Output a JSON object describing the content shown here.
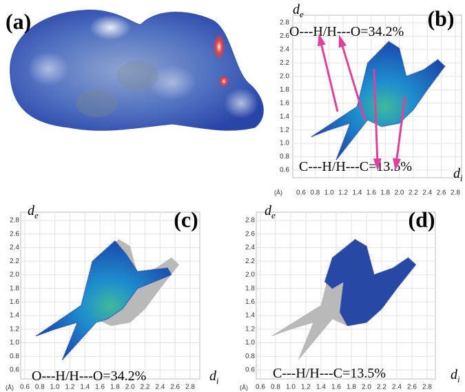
{
  "panels": [
    {
      "label": "(a)"
    },
    {
      "label": "(b)",
      "y_symbol": "d",
      "y_sub": "e",
      "x_symbol": "d",
      "x_sub": "i",
      "unit": "(Å)",
      "xticks": [
        0.6,
        0.8,
        {
          "value": 1,
          "label": "1.0"
        },
        1.2,
        1.4,
        1.6,
        1.8,
        {
          "value": 2,
          "label": "2.0"
        },
        2.2,
        2.4,
        2.6,
        2.8
      ],
      "yticks": [
        0.6,
        0.8,
        {
          "value": 1,
          "label": "1.0"
        },
        1.2,
        1.4,
        1.6,
        1.8,
        {
          "value": 2,
          "label": "2.0"
        },
        2.2,
        2.4,
        2.6,
        2.8
      ],
      "annotations": [
        "O---H/H---O=34.2%",
        "C---H/H---C=13.5%"
      ]
    },
    {
      "label": "(c)",
      "y_symbol": "d",
      "y_sub": "e",
      "x_symbol": "d",
      "x_sub": "i",
      "unit": "(Å)",
      "xticks": [
        0.6,
        0.8,
        {
          "value": 1,
          "label": "1.0"
        },
        1.2,
        1.4,
        1.6,
        1.8,
        {
          "value": 2,
          "label": "2.0"
        },
        2.2,
        2.4,
        2.6,
        2.8
      ],
      "yticks": [
        0.6,
        0.8,
        {
          "value": 1,
          "label": "1.0"
        },
        1.2,
        1.4,
        1.6,
        1.8,
        {
          "value": 2,
          "label": "2.0"
        },
        2.2,
        2.4,
        2.6,
        2.8
      ],
      "annotations": [
        "O---H/H---O=34.2%"
      ]
    },
    {
      "label": "(d)",
      "y_symbol": "d",
      "y_sub": "e",
      "x_symbol": "d",
      "x_sub": "i",
      "unit": "(Å)",
      "xticks": [
        0.6,
        0.8,
        {
          "value": 1,
          "label": "1.0"
        },
        1.2,
        1.4,
        1.6,
        1.8,
        {
          "value": 2,
          "label": "2.0"
        },
        2.2,
        2.4,
        2.6,
        2.8
      ],
      "yticks": [
        0.6,
        0.8,
        {
          "value": 1,
          "label": "1.0"
        },
        1.2,
        1.4,
        1.6,
        1.8,
        {
          "value": 2,
          "label": "2.0"
        },
        2.2,
        2.4,
        2.6,
        2.8
      ],
      "annotations": [
        "C---H/H---C=13.5%"
      ]
    }
  ]
}
